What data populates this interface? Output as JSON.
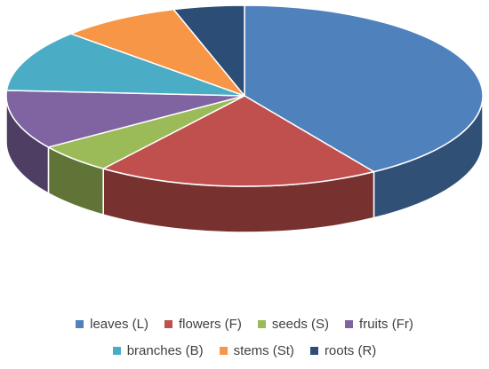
{
  "chart_data": {
    "type": "pie",
    "variant": "3d",
    "title": "",
    "categories": [
      "leaves (L)",
      "flowers (F)",
      "seeds (S)",
      "fruits (Fr)",
      "branches (B)",
      "stems (St)",
      "roots (R)"
    ],
    "values": [
      42.5,
      20.0,
      5.5,
      11.0,
      11.5,
      8.5,
      5.0
    ],
    "colors": [
      "#4F81BD",
      "#C0504D",
      "#9BBB59",
      "#8064A2",
      "#4BACC6",
      "#F79646",
      "#2C4D75"
    ],
    "legend": "bottom"
  }
}
